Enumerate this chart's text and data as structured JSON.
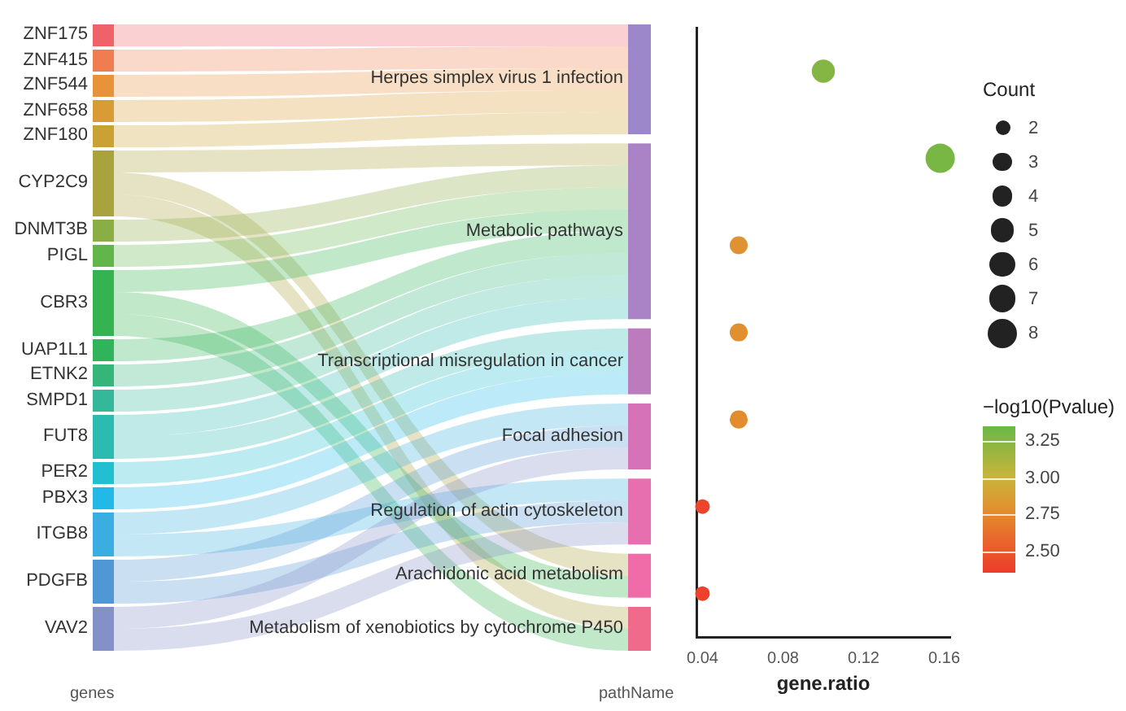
{
  "chart_data": [
    {
      "type": "other",
      "xlabel": "genes",
      "annotations": [
        "pathName"
      ],
      "categories": [
        "Herpes simplex virus 1 infection",
        "Metabolic pathways",
        "Transcriptional misregulation in cancer",
        "Focal adhesion",
        "Regulation of actin cytoskeleton",
        "Arachidonic acid metabolism",
        "Metabolism of xenobiotics by cytochrome P450"
      ],
      "y_categories": [
        "ZNF175",
        "ZNF415",
        "ZNF544",
        "ZNF658",
        "ZNF180",
        "CYP2C9",
        "DNMT3B",
        "PIGL",
        "CBR3",
        "UAP1L1",
        "ETNK2",
        "SMPD1",
        "FUT8",
        "PER2",
        "PBX3",
        "ITGB8",
        "PDGFB",
        "VAV2"
      ]
    },
    {
      "type": "bubble",
      "orientation": "horizontal",
      "xlabel": "gene.ratio",
      "legend_title": "Count",
      "clabel": "−log10(Pvalue)",
      "tick_labels": "x",
      "grid": false,
      "categories": [
        null,
        null,
        null,
        null,
        null,
        null,
        null
      ],
      "values": [
        0.1,
        0.158,
        0.058,
        0.058,
        0.058,
        0.04,
        0.04
      ],
      "sizes": [
        5,
        8,
        3,
        3,
        3,
        2,
        2
      ],
      "size_legend": [
        2,
        3,
        4,
        5,
        6,
        7,
        8
      ],
      "cvalues": [
        3.25,
        3.3,
        2.8,
        2.78,
        2.76,
        2.4,
        2.38
      ],
      "xlim": [
        0.037,
        0.163
      ],
      "xticks": [
        {
          "value": 0.04,
          "label": "0.04"
        },
        {
          "value": 0.08,
          "label": "0.08"
        },
        {
          "value": 0.12,
          "label": "0.12"
        },
        {
          "value": 0.16,
          "label": "0.16"
        }
      ],
      "clim": [
        2.35,
        3.35
      ],
      "cticks": [
        {
          "value": 2.5,
          "label": "2.50"
        },
        {
          "value": 2.75,
          "label": "2.75"
        },
        {
          "value": 3,
          "label": "3.00"
        },
        {
          "value": 3.25,
          "label": "3.25"
        }
      ]
    }
  ]
}
